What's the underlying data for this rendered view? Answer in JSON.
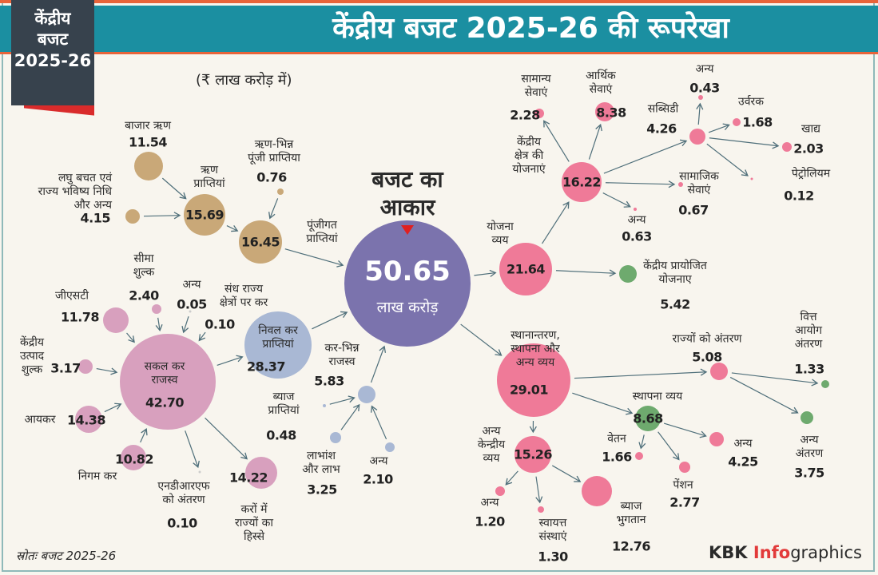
{
  "header": {
    "title": "केंद्रीय बजट 2025-26 की रूपरेखा",
    "badge": "केंद्रीय\nबजट\n2025-26"
  },
  "unit": "(₹ लाख करोड़ में)",
  "budget": {
    "label": "बजट का\nआकार",
    "value": "50.65",
    "unit": "लाख करोड़"
  },
  "colors": {
    "header": "#1b8fa1",
    "accent": "#e8643a",
    "capital": "#c9a878",
    "tax": "#d8a0be",
    "net_tax": "#a9b8d4",
    "budget": "#7b73ad",
    "expenditure": "#ef7a98",
    "green": "#6eaa6e"
  },
  "nodes": {
    "market": {
      "label": "बाजार ऋण",
      "value": "11.54"
    },
    "savings": {
      "label": "लघु बचत एवं\nराज्य भविष्य निधि\nऔर अन्य",
      "value": "4.15"
    },
    "debt": {
      "label": "ऋण\nप्राप्तियां",
      "value": "15.69"
    },
    "noncap": {
      "label": "ऋण-भिन्न\nपूंजी प्राप्तिया",
      "value": "0.76"
    },
    "capital": {
      "label": "पूंजीगत\nप्राप्तियां",
      "value": "16.45"
    },
    "gst": {
      "label": "जीएसटी",
      "value": "11.78"
    },
    "customs": {
      "label": "सीमा\nशुल्क",
      "value": "2.40"
    },
    "oth005": {
      "label": "अन्य",
      "value": "0.05"
    },
    "ut": {
      "label": "संध राज्य\nक्षेत्रों पर कर",
      "value": "0.10"
    },
    "excise": {
      "label": "केंद्रीय\nउत्पाद\nशुल्क",
      "value": "3.17"
    },
    "income": {
      "label": "आयकर",
      "value": "14.38"
    },
    "corp": {
      "label": "निगम कर",
      "value": "10.82"
    },
    "gross": {
      "label": "सकल कर\nराजस्व",
      "value": "42.70"
    },
    "net": {
      "label": "निवल कर\nप्राप्तियां",
      "value": "28.37"
    },
    "ndrf": {
      "label": "एनडीआरएफ\nको अंतरण",
      "value": "0.10"
    },
    "share": {
      "label": "करों में\nराज्यों का\nहिस्से",
      "value": "14.22"
    },
    "nontax": {
      "label": "कर-भिन्न\nराजस्व",
      "value": "5.83"
    },
    "intrec": {
      "label": "ब्याज\nप्राप्तियां",
      "value": "0.48"
    },
    "divid": {
      "label": "लाभांश\nऔर लाभ",
      "value": "3.25"
    },
    "oth210": {
      "label": "अन्य",
      "value": "2.10"
    },
    "plan": {
      "label": "योजना\nव्यय",
      "value": "21.64"
    },
    "central": {
      "label": "केंद्रीय\nक्षेत्र की\nयोजनाएं",
      "value": "16.22"
    },
    "gen": {
      "label": "सामान्य\nसेवाएं",
      "value": "2.28"
    },
    "econ": {
      "label": "आर्थिक\nसेवाएं",
      "value": "8.38"
    },
    "subsidy": {
      "label": "सब्सिडी",
      "value": "4.26"
    },
    "oth043": {
      "label": "अन्य",
      "value": "0.43"
    },
    "fert": {
      "label": "उर्वरक",
      "value": "1.68"
    },
    "food": {
      "label": "खाद्य",
      "value": "2.03"
    },
    "petrol": {
      "label": "पेट्रोलियम",
      "value": "0.12"
    },
    "social": {
      "label": "सामाजिक\nसेवाएं",
      "value": "0.67"
    },
    "oth063": {
      "label": "अन्य",
      "value": "0.63"
    },
    "css": {
      "label": "केंद्रीय प्रायोजित\nयोजनाए",
      "value": "5.42"
    },
    "transfer": {
      "label": "स्थानान्तरण,\nस्थापना और\nअन्य व्यय",
      "value": "29.01"
    },
    "states": {
      "label": "राज्यों को अंतरण",
      "value": "5.08"
    },
    "fc": {
      "label": "वित्त\nआयोग\nअंतरण",
      "value": "1.33"
    },
    "othtr": {
      "label": "अन्य\nअंतरण",
      "value": "3.75"
    },
    "estab": {
      "label": "स्थापना व्यय",
      "value": "8.68"
    },
    "salary": {
      "label": "वेतन",
      "value": "1.66"
    },
    "oth425": {
      "label": "अन्य",
      "value": "4.25"
    },
    "pension": {
      "label": "पेंशन",
      "value": "2.77"
    },
    "othcent": {
      "label": "अन्य\nकेन्द्रीय\nव्यय",
      "value": "15.26"
    },
    "oth120": {
      "label": "अन्य",
      "value": "1.20"
    },
    "auto": {
      "label": "स्वायत्त\nसंस्थाएं",
      "value": "1.30"
    },
    "interest": {
      "label": "ब्याज\nभुगतान",
      "value": "12.76"
    }
  },
  "footer": {
    "source": "स्रोतः बजट 2025-26",
    "brand_a": "KBK ",
    "brand_b": "Info",
    "brand_c": "graphics"
  }
}
